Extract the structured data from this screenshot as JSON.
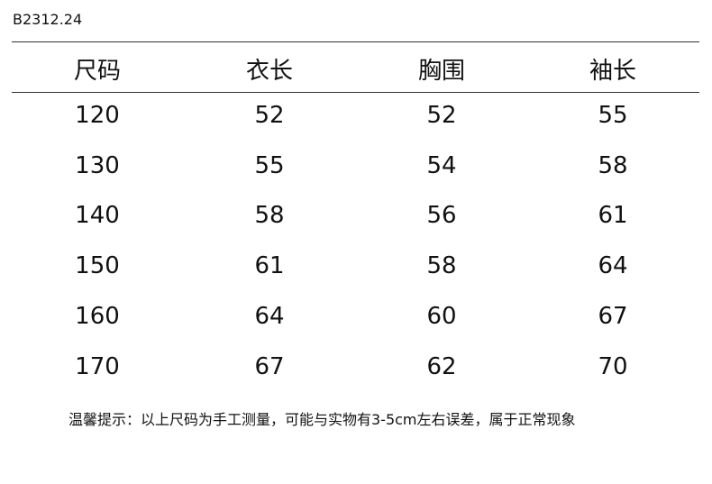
{
  "header": {
    "code": "B2312.24"
  },
  "table": {
    "columns": [
      "尺码",
      "衣长",
      "胸围",
      "袖长"
    ],
    "rows": [
      [
        "120",
        "52",
        "52",
        "55"
      ],
      [
        "130",
        "55",
        "54",
        "58"
      ],
      [
        "140",
        "58",
        "56",
        "61"
      ],
      [
        "150",
        "61",
        "58",
        "64"
      ],
      [
        "160",
        "64",
        "60",
        "67"
      ],
      [
        "170",
        "67",
        "62",
        "70"
      ]
    ]
  },
  "note": "温馨提示：以上尺码为手工测量，可能与实物有3-5cm左右误差，属于正常现象"
}
